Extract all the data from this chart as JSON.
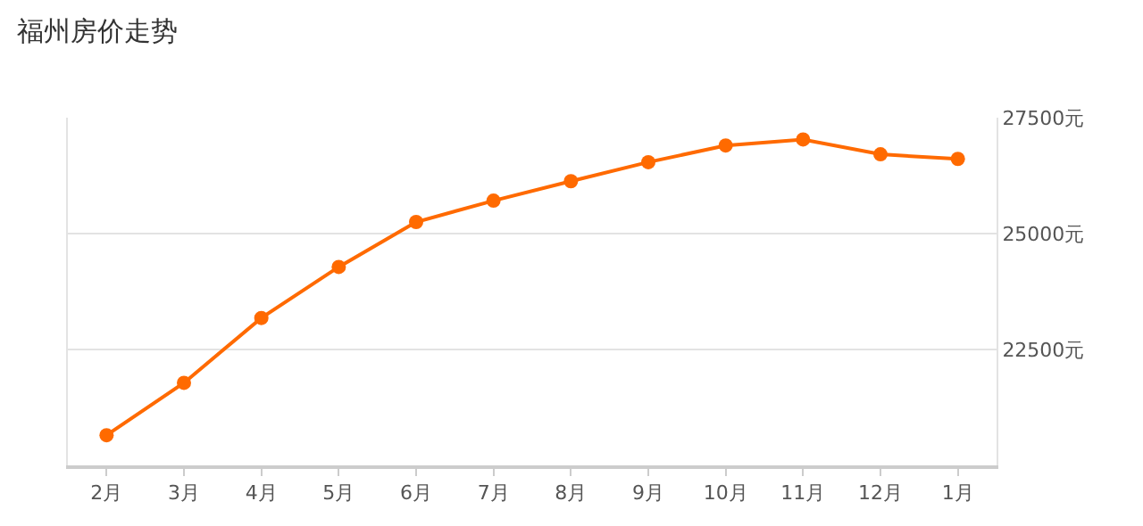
{
  "chart_data": {
    "type": "line",
    "title": "福州房价走势",
    "categories": [
      "2月",
      "3月",
      "4月",
      "5月",
      "6月",
      "7月",
      "8月",
      "9月",
      "10月",
      "11月",
      "12月",
      "1月"
    ],
    "series": [
      {
        "color": "#ff6a00",
        "values": [
          20650,
          21780,
          23180,
          24280,
          25250,
          25710,
          26130,
          26540,
          26900,
          27030,
          26710,
          26610
        ]
      }
    ],
    "ylim": [
      20000,
      27500
    ],
    "yticks": [
      {
        "value": 20000,
        "label": null
      },
      {
        "value": 22500,
        "label": "22500元"
      },
      {
        "value": 25000,
        "label": "25000元"
      },
      {
        "value": 27500,
        "label": "27500元"
      }
    ],
    "grid": "y",
    "marker": "circle",
    "line_style": "solid"
  }
}
